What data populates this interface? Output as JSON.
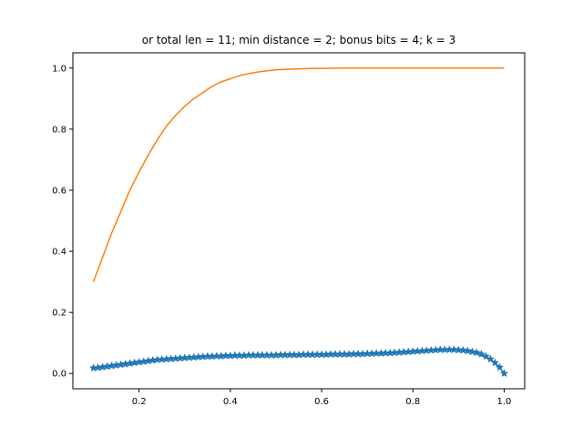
{
  "chart_data": {
    "type": "line",
    "title": "or total len = 11; min distance = 2; bonus bits = 4; k = 3",
    "xlabel": "",
    "ylabel": "",
    "xlim": [
      0.055,
      1.045
    ],
    "ylim": [
      -0.05,
      1.05
    ],
    "xticks": [
      0.2,
      0.4,
      0.6,
      0.8,
      1.0
    ],
    "xtick_labels": [
      "0.2",
      "0.4",
      "0.6",
      "0.8",
      "1.0"
    ],
    "yticks": [
      0.0,
      0.2,
      0.4,
      0.6,
      0.8,
      1.0
    ],
    "ytick_labels": [
      "0.0",
      "0.2",
      "0.4",
      "0.6",
      "0.8",
      "1.0"
    ],
    "grid": false,
    "legend": "none",
    "series": [
      {
        "color": "#1f77b4",
        "marker": "star",
        "x": [
          0.1,
          0.11,
          0.12,
          0.13,
          0.14,
          0.15,
          0.16,
          0.17,
          0.18,
          0.19,
          0.2,
          0.21,
          0.22,
          0.23,
          0.24,
          0.25,
          0.26,
          0.27,
          0.28,
          0.29,
          0.3,
          0.31,
          0.32,
          0.33,
          0.34,
          0.35,
          0.36,
          0.37,
          0.38,
          0.39,
          0.4,
          0.41,
          0.42,
          0.43,
          0.44,
          0.45,
          0.46,
          0.47,
          0.48,
          0.49,
          0.5,
          0.51,
          0.52,
          0.53,
          0.54,
          0.55,
          0.56,
          0.57,
          0.58,
          0.59,
          0.6,
          0.61,
          0.62,
          0.63,
          0.64,
          0.65,
          0.66,
          0.67,
          0.68,
          0.69,
          0.7,
          0.71,
          0.72,
          0.73,
          0.74,
          0.75,
          0.76,
          0.77,
          0.78,
          0.79,
          0.8,
          0.81,
          0.82,
          0.83,
          0.84,
          0.85,
          0.86,
          0.87,
          0.88,
          0.89,
          0.9,
          0.91,
          0.92,
          0.93,
          0.94,
          0.95,
          0.96,
          0.97,
          0.98,
          0.99,
          1.0
        ],
        "y": [
          0.018,
          0.019,
          0.021,
          0.023,
          0.025,
          0.027,
          0.029,
          0.031,
          0.033,
          0.035,
          0.037,
          0.039,
          0.041,
          0.043,
          0.045,
          0.046,
          0.047,
          0.048,
          0.049,
          0.05,
          0.051,
          0.052,
          0.053,
          0.054,
          0.055,
          0.056,
          0.056,
          0.057,
          0.057,
          0.058,
          0.058,
          0.059,
          0.059,
          0.059,
          0.06,
          0.06,
          0.06,
          0.06,
          0.06,
          0.06,
          0.06,
          0.061,
          0.061,
          0.061,
          0.061,
          0.061,
          0.062,
          0.062,
          0.062,
          0.062,
          0.062,
          0.062,
          0.063,
          0.063,
          0.063,
          0.063,
          0.063,
          0.064,
          0.064,
          0.064,
          0.065,
          0.065,
          0.066,
          0.066,
          0.067,
          0.067,
          0.068,
          0.069,
          0.07,
          0.071,
          0.072,
          0.073,
          0.074,
          0.075,
          0.076,
          0.077,
          0.078,
          0.078,
          0.078,
          0.078,
          0.077,
          0.076,
          0.074,
          0.071,
          0.068,
          0.063,
          0.056,
          0.047,
          0.035,
          0.02,
          0.0
        ]
      },
      {
        "color": "#ff7f0e",
        "marker": "none",
        "x": [
          0.1,
          0.12,
          0.14,
          0.16,
          0.18,
          0.2,
          0.22,
          0.24,
          0.26,
          0.28,
          0.3,
          0.32,
          0.34,
          0.36,
          0.38,
          0.4,
          0.42,
          0.44,
          0.46,
          0.48,
          0.5,
          0.52,
          0.54,
          0.56,
          0.58,
          0.6,
          0.65,
          0.7,
          0.8,
          0.9,
          1.0
        ],
        "y": [
          0.3,
          0.38,
          0.46,
          0.53,
          0.6,
          0.66,
          0.715,
          0.765,
          0.81,
          0.845,
          0.875,
          0.9,
          0.92,
          0.94,
          0.955,
          0.965,
          0.975,
          0.982,
          0.987,
          0.991,
          0.994,
          0.996,
          0.997,
          0.998,
          0.999,
          0.999,
          1.0,
          1.0,
          1.0,
          1.0,
          1.0
        ]
      }
    ]
  }
}
